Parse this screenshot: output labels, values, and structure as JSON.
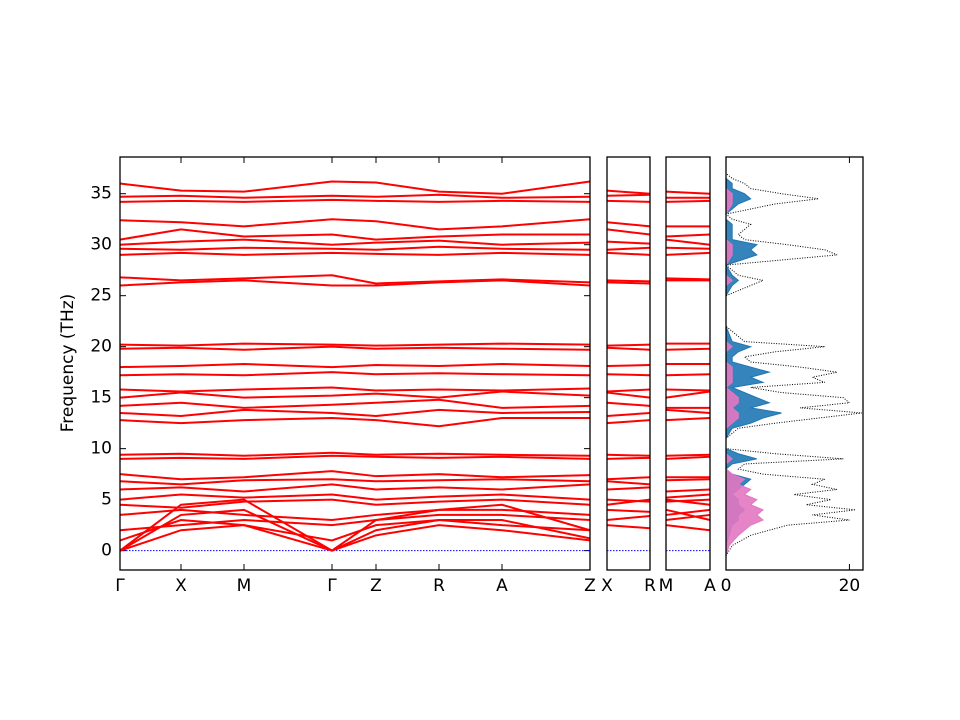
{
  "chart_data": [
    {
      "type": "band",
      "ylabel": "Frequency (THz)",
      "ylim": [
        -1.9,
        38.6
      ],
      "yticks": [
        0,
        5,
        10,
        15,
        20,
        25,
        30,
        35
      ],
      "xlim": [
        0,
        4.7
      ],
      "xticks": [
        {
          "value": 0,
          "label": "Γ"
        },
        {
          "value": 0.61,
          "label": "X"
        },
        {
          "value": 1.24,
          "label": "M"
        },
        {
          "value": 2.12,
          "label": "Γ"
        },
        {
          "value": 2.56,
          "label": "Z"
        },
        {
          "value": 3.19,
          "label": "R"
        },
        {
          "value": 3.82,
          "label": "A"
        },
        {
          "value": 4.7,
          "label": "Z"
        }
      ],
      "color": "#ff0000",
      "baseline": 0,
      "baseline_color": "#0000ff",
      "x": [
        0,
        0.61,
        1.24,
        2.12,
        2.56,
        3.19,
        3.82,
        4.7
      ],
      "bands": [
        [
          0,
          2.0,
          2.5,
          0,
          1.5,
          2.5,
          2.0,
          1.0
        ],
        [
          0,
          3.5,
          4,
          0,
          2,
          3,
          3,
          1.2
        ],
        [
          0,
          4.5,
          5,
          0,
          3,
          4,
          4.5,
          2
        ],
        [
          1,
          3,
          2.5,
          1,
          2.5,
          3,
          2.5,
          2
        ],
        [
          2,
          2.5,
          3,
          2.5,
          3,
          3.5,
          3.5,
          3
        ],
        [
          3.5,
          4,
          3.5,
          3,
          3.5,
          4,
          4,
          3.5
        ],
        [
          4.5,
          4.2,
          4.8,
          5,
          4.5,
          4.8,
          5,
          4.5
        ],
        [
          5,
          5.5,
          5.2,
          5.5,
          5,
          5.3,
          5.5,
          5
        ],
        [
          6,
          6.2,
          5.8,
          6.5,
          6,
          6.2,
          6,
          6.5
        ],
        [
          6.8,
          6.5,
          6.9,
          7,
          6.8,
          6.9,
          7,
          6.8
        ],
        [
          7.5,
          7,
          7.2,
          7.8,
          7.3,
          7.5,
          7.2,
          7.4
        ],
        [
          9,
          9.1,
          9,
          9.3,
          9.2,
          9.1,
          9.2,
          9
        ],
        [
          9.4,
          9.5,
          9.3,
          9.6,
          9.4,
          9.5,
          9.4,
          9.3
        ],
        [
          12.8,
          12.5,
          12.8,
          13,
          12.8,
          12.2,
          13,
          13
        ],
        [
          13.5,
          13.2,
          13.8,
          13.5,
          13.2,
          13.8,
          13.5,
          13.6
        ],
        [
          14.2,
          14.5,
          14,
          14.3,
          14.5,
          14.8,
          14,
          14.2
        ],
        [
          15,
          15.5,
          15,
          15.2,
          15.4,
          15,
          15.6,
          15.2
        ],
        [
          15.8,
          15.6,
          15.8,
          16,
          15.7,
          15.8,
          15.7,
          15.9
        ],
        [
          17.2,
          17.3,
          17.2,
          17.5,
          17.3,
          17.4,
          17.3,
          17.2
        ],
        [
          18,
          18.1,
          18.3,
          18,
          18.2,
          18.1,
          18.3,
          18.1
        ],
        [
          19.8,
          19.9,
          19.7,
          20,
          19.8,
          19.9,
          19.8,
          19.7
        ],
        [
          20.2,
          20.1,
          20.3,
          20.2,
          20.1,
          20.2,
          20.3,
          20.2
        ],
        [
          26,
          26.3,
          26.5,
          26,
          26,
          26.3,
          26.5,
          26
        ],
        [
          26.8,
          26.5,
          26.7,
          27,
          26.2,
          26.4,
          26.6,
          26.3
        ],
        [
          29,
          29.2,
          29,
          29.2,
          29.1,
          29,
          29.2,
          29
        ],
        [
          29.6,
          29.5,
          29.7,
          29.6,
          29.5,
          29.8,
          29.6,
          29.5
        ],
        [
          30,
          30.3,
          30.5,
          30,
          30.2,
          30.4,
          30,
          30.2
        ],
        [
          30.5,
          31.5,
          30.8,
          31,
          30.5,
          30.8,
          31,
          31
        ],
        [
          32.4,
          32.2,
          31.8,
          32.5,
          32.3,
          31.5,
          31.8,
          32.5
        ],
        [
          34.2,
          34.3,
          34.2,
          34.4,
          34.3,
          34.2,
          34.3,
          34.2
        ],
        [
          34.7,
          34.8,
          34.6,
          34.8,
          34.7,
          34.9,
          34.6,
          34.7
        ],
        [
          36,
          35.3,
          35.2,
          36.2,
          36.1,
          35.2,
          35,
          36.2
        ]
      ]
    },
    {
      "type": "band",
      "ylim": [
        -1.9,
        38.6
      ],
      "xlim": [
        0,
        0.43
      ],
      "xticks": [
        {
          "value": 0,
          "label": "X"
        },
        {
          "value": 0.43,
          "label": "R"
        }
      ],
      "color": "#ff0000",
      "baseline": 0,
      "baseline_color": "#0000ff",
      "x": [
        0,
        0.43
      ],
      "bands": [
        [
          2.5,
          2.2
        ],
        [
          3,
          3.4
        ],
        [
          4,
          3.8
        ],
        [
          4.5,
          5
        ],
        [
          5,
          4.8
        ],
        [
          6,
          6.2
        ],
        [
          6.8,
          6.5
        ],
        [
          7,
          7.2
        ],
        [
          9,
          9.1
        ],
        [
          9.4,
          9.3
        ],
        [
          12.5,
          12.8
        ],
        [
          13.2,
          13.5
        ],
        [
          14.5,
          14.2
        ],
        [
          15.5,
          15
        ],
        [
          15.6,
          15.8
        ],
        [
          17.3,
          17.2
        ],
        [
          18.1,
          18.2
        ],
        [
          19.9,
          19.7
        ],
        [
          20.1,
          20.2
        ],
        [
          26.3,
          26.2
        ],
        [
          26.5,
          26.4
        ],
        [
          29.2,
          29
        ],
        [
          29.5,
          29.7
        ],
        [
          30.3,
          30.1
        ],
        [
          31.5,
          31
        ],
        [
          32.2,
          31.8
        ],
        [
          34.3,
          34.2
        ],
        [
          34.8,
          34.9
        ],
        [
          35.3,
          35
        ]
      ]
    },
    {
      "type": "band",
      "ylim": [
        -1.9,
        38.6
      ],
      "xlim": [
        0,
        0.44
      ],
      "xticks": [
        {
          "value": 0,
          "label": "M"
        },
        {
          "value": 0.44,
          "label": "A"
        }
      ],
      "color": "#ff0000",
      "baseline": 0,
      "baseline_color": "#0000ff",
      "x": [
        0,
        0.44
      ],
      "bands": [
        [
          2.5,
          2.0
        ],
        [
          4,
          3
        ],
        [
          5,
          4.5
        ],
        [
          3,
          3.5
        ],
        [
          3.5,
          4
        ],
        [
          4.8,
          5
        ],
        [
          5.2,
          5.5
        ],
        [
          5.8,
          6
        ],
        [
          6.9,
          7
        ],
        [
          7.2,
          7.2
        ],
        [
          9,
          9.2
        ],
        [
          9.3,
          9.4
        ],
        [
          12.8,
          13
        ],
        [
          13.8,
          13.5
        ],
        [
          14,
          14
        ],
        [
          15,
          15.6
        ],
        [
          15.8,
          15.7
        ],
        [
          17.2,
          17.3
        ],
        [
          18.3,
          18.3
        ],
        [
          19.7,
          19.8
        ],
        [
          20.3,
          20.3
        ],
        [
          26.5,
          26.5
        ],
        [
          26.7,
          26.6
        ],
        [
          29,
          29.2
        ],
        [
          29.7,
          29.6
        ],
        [
          30.5,
          30
        ],
        [
          30.8,
          31
        ],
        [
          31.8,
          31.8
        ],
        [
          34.2,
          34.3
        ],
        [
          34.6,
          34.6
        ],
        [
          35.2,
          35
        ]
      ]
    },
    {
      "type": "dos",
      "ylim": [
        -1.9,
        38.6
      ],
      "xlim": [
        0,
        22.2
      ],
      "xticks": [
        0,
        20
      ],
      "freq": [
        -0.5,
        0.5,
        1.5,
        2.5,
        3,
        3.5,
        4,
        4.5,
        5,
        5.5,
        6,
        6.5,
        7,
        7.5,
        8,
        8.5,
        9,
        9.5,
        10,
        11,
        12,
        12.5,
        13,
        13.5,
        14,
        14.5,
        15,
        15.5,
        16,
        16.5,
        17,
        17.5,
        18,
        18.5,
        19,
        19.5,
        20,
        20.5,
        22,
        25,
        26,
        26.5,
        27,
        28,
        29,
        29.5,
        30,
        30.5,
        31,
        32,
        32.5,
        33,
        34,
        34.5,
        35,
        35.5,
        36,
        36.5,
        37
      ],
      "total": {
        "color": "#000000",
        "values": [
          0,
          1,
          4,
          10,
          20,
          14,
          21,
          13,
          17,
          11,
          18,
          14,
          16,
          6,
          2,
          3,
          19,
          8,
          0,
          0,
          2,
          8,
          15,
          22,
          12,
          20,
          19,
          9,
          4,
          16,
          14,
          18,
          12,
          4,
          3,
          8,
          16,
          3,
          0,
          0,
          4,
          6,
          2,
          0,
          18,
          16,
          10,
          3,
          2,
          4,
          1,
          0,
          8,
          15,
          9,
          4,
          3,
          1,
          0
        ]
      },
      "partials": [
        {
          "color": "#1f77b4",
          "values": [
            0,
            0,
            0.5,
            1,
            2,
            2,
            3,
            2,
            2,
            1,
            2,
            3,
            4,
            1,
            0,
            1,
            5,
            2,
            0,
            0,
            1,
            4,
            6,
            9,
            4,
            7,
            5,
            3,
            1,
            6,
            4,
            7,
            4,
            1,
            1,
            2,
            4,
            1,
            0,
            0,
            1,
            2,
            1,
            0,
            5,
            4,
            5,
            1,
            1,
            1,
            0,
            0,
            2,
            4,
            3,
            1,
            1,
            0,
            0
          ]
        },
        {
          "color": "#e377c2",
          "values": [
            0,
            0.5,
            2,
            4,
            6,
            5,
            6,
            4,
            5,
            3,
            4,
            2,
            3,
            1,
            0,
            0,
            1,
            0,
            0,
            0,
            0,
            1,
            2,
            2,
            1,
            2,
            2,
            1,
            0,
            1,
            1,
            1,
            1,
            0,
            0,
            0,
            1,
            0,
            0,
            0,
            0,
            1,
            0,
            0,
            1,
            1,
            1,
            0,
            0,
            0,
            0,
            0,
            1,
            1,
            1,
            0,
            0,
            0,
            0
          ]
        }
      ]
    }
  ]
}
